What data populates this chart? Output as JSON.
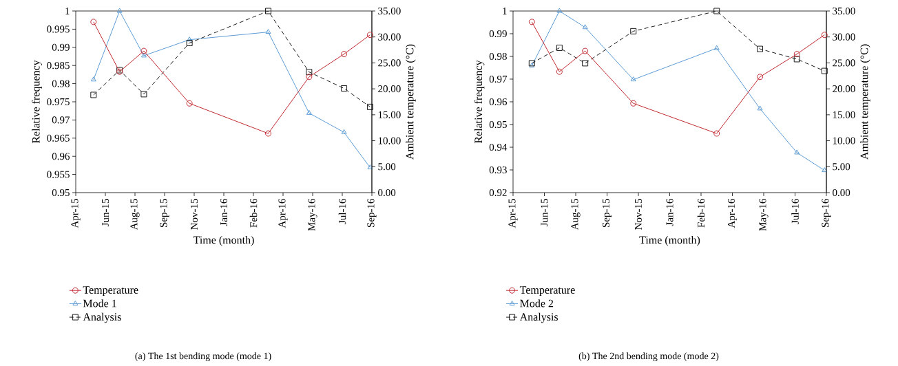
{
  "chart_data": [
    {
      "type": "line",
      "title": "(a)  The 1st bending mode (mode 1)",
      "xlabel": "Time (month)",
      "ylabel": "Relative frequency",
      "y2label": "Ambient temperature (°C)",
      "legend": "bottom",
      "x": [
        "2015-05-26",
        "2015-07-09",
        "2015-08-19",
        "2015-11-04",
        "2016-03-16",
        "2016-05-24",
        "2016-07-22",
        "2016-09-04"
      ],
      "xlim": [
        "2015-04-26",
        "2016-09-07"
      ],
      "xticks": [
        {
          "value": "2015-04-26",
          "label": "Apr-15"
        },
        {
          "value": "2015-06-15",
          "label": "Jun-15"
        },
        {
          "value": "2015-08-04",
          "label": "Aug-15"
        },
        {
          "value": "2015-09-23",
          "label": "Sep-15"
        },
        {
          "value": "2015-11-12",
          "label": "Nov-15"
        },
        {
          "value": "2016-01-01",
          "label": "Jan-16"
        },
        {
          "value": "2016-02-20",
          "label": "Feb-16"
        },
        {
          "value": "2016-04-10",
          "label": "Apr-16"
        },
        {
          "value": "2016-05-30",
          "label": "May-16"
        },
        {
          "value": "2016-07-19",
          "label": "Jul-16"
        },
        {
          "value": "2016-09-07",
          "label": "Sep-16"
        }
      ],
      "ylim": [
        0.95,
        1
      ],
      "yticks": [
        0.95,
        0.955,
        0.96,
        0.965,
        0.97,
        0.975,
        0.98,
        0.985,
        0.99,
        0.995,
        1
      ],
      "y2lim": [
        0,
        35
      ],
      "y2ticks": [
        {
          "value": 0,
          "label": "0.00"
        },
        {
          "value": 5,
          "label": "5.00"
        },
        {
          "value": 10,
          "label": "10.00"
        },
        {
          "value": 15,
          "label": "15.00"
        },
        {
          "value": 20,
          "label": "20.00"
        },
        {
          "value": 25,
          "label": "25.00"
        },
        {
          "value": 30,
          "label": "30.00"
        },
        {
          "value": 35,
          "label": "35.00"
        }
      ],
      "series": [
        {
          "name": "Temperature",
          "color": "#c0272d",
          "axis": "y2",
          "marker": "circle",
          "line_style": "solid",
          "values": [
            32.9,
            23.3,
            27.3,
            17.2,
            11.4,
            22.3,
            26.7,
            30.4
          ]
        },
        {
          "name": "Mode 1",
          "color": "#5b9bd5",
          "axis": "y",
          "marker": "triangle",
          "line_style": "solid",
          "values": [
            0.9811,
            1.0,
            0.9877,
            0.9921,
            0.9942,
            0.9719,
            0.9666,
            0.9569
          ]
        },
        {
          "name": "Analysis",
          "color": "#1a1a1a",
          "axis": "y",
          "marker": "square",
          "line_style": "dashed",
          "values": [
            0.9769,
            0.9837,
            0.9771,
            0.9912,
            1.0,
            0.9832,
            0.9787,
            0.9736
          ]
        }
      ]
    },
    {
      "type": "line",
      "title": "(b)  The 2nd bending mode (mode 2)",
      "xlabel": "Time (month)",
      "ylabel": "Relative frequency",
      "y2label": "Ambient temperature (°C)",
      "legend": "bottom",
      "x": [
        "2015-05-26",
        "2015-07-09",
        "2015-08-19",
        "2015-11-04",
        "2016-03-16",
        "2016-05-24",
        "2016-07-22",
        "2016-09-04"
      ],
      "xlim": [
        "2015-04-26",
        "2016-09-07"
      ],
      "xticks": [
        {
          "value": "2015-04-26",
          "label": "Apr-15"
        },
        {
          "value": "2015-06-15",
          "label": "Jun-15"
        },
        {
          "value": "2015-08-04",
          "label": "Aug-15"
        },
        {
          "value": "2015-09-23",
          "label": "Sep-15"
        },
        {
          "value": "2015-11-12",
          "label": "Nov-15"
        },
        {
          "value": "2016-01-01",
          "label": "Jan-16"
        },
        {
          "value": "2016-02-20",
          "label": "Feb-16"
        },
        {
          "value": "2016-04-10",
          "label": "Apr-16"
        },
        {
          "value": "2016-05-30",
          "label": "May-16"
        },
        {
          "value": "2016-07-19",
          "label": "Jul-16"
        },
        {
          "value": "2016-09-07",
          "label": "Sep-16"
        }
      ],
      "ylim": [
        0.92,
        1
      ],
      "yticks": [
        0.92,
        0.93,
        0.94,
        0.95,
        0.96,
        0.97,
        0.98,
        0.99,
        1
      ],
      "y2lim": [
        0,
        35
      ],
      "y2ticks": [
        {
          "value": 0,
          "label": "0.00"
        },
        {
          "value": 5,
          "label": "5.00"
        },
        {
          "value": 10,
          "label": "10.00"
        },
        {
          "value": 15,
          "label": "15.00"
        },
        {
          "value": 20,
          "label": "20.00"
        },
        {
          "value": 25,
          "label": "25.00"
        },
        {
          "value": 30,
          "label": "30.00"
        },
        {
          "value": 35,
          "label": "35.00"
        }
      ],
      "series": [
        {
          "name": "Temperature",
          "color": "#c0272d",
          "axis": "y2",
          "marker": "circle",
          "line_style": "solid",
          "values": [
            32.9,
            23.3,
            27.3,
            17.2,
            11.4,
            22.3,
            26.7,
            30.4
          ]
        },
        {
          "name": "Mode 2",
          "color": "#5b9bd5",
          "axis": "y",
          "marker": "triangle",
          "line_style": "solid",
          "values": [
            0.9759,
            1.0,
            0.9928,
            0.9698,
            0.9836,
            0.957,
            0.9376,
            0.9298
          ]
        },
        {
          "name": "Analysis",
          "color": "#1a1a1a",
          "axis": "y",
          "marker": "square",
          "line_style": "dashed",
          "values": [
            0.977,
            0.9838,
            0.977,
            0.9911,
            1.0,
            0.9833,
            0.9788,
            0.9736
          ]
        }
      ]
    }
  ]
}
